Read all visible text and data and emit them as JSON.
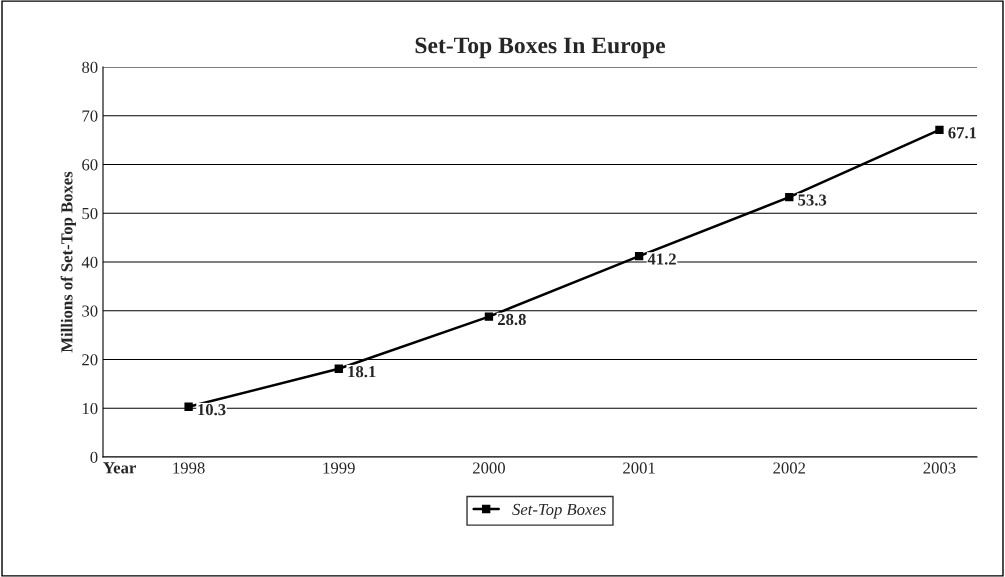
{
  "chart_data": {
    "type": "line",
    "title": "Set-Top Boxes In Europe",
    "xlabel": "Year",
    "ylabel": "Millions of Set-Top Boxes",
    "categories": [
      "1998",
      "1999",
      "2000",
      "2001",
      "2002",
      "2003"
    ],
    "series": [
      {
        "name": "Set-Top Boxes",
        "color": "#000000",
        "values": [
          10.3,
          18.1,
          28.8,
          41.2,
          53.3,
          67.1
        ]
      }
    ],
    "ylim": [
      0,
      80
    ],
    "yticks": [
      0,
      10,
      20,
      30,
      40,
      50,
      60,
      70,
      80
    ],
    "grid": "y",
    "legend": "bottom",
    "marker": "square",
    "line_style": "solid",
    "data_labels": true
  }
}
